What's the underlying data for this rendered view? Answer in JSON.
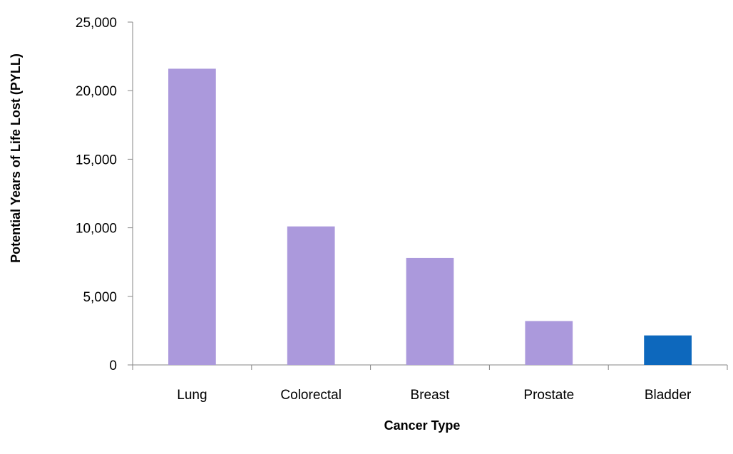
{
  "chart_data": {
    "type": "bar",
    "title": "",
    "xlabel": "Cancer Type",
    "ylabel": "Potential Years of Life Lost (PYLL)",
    "categories": [
      "Lung",
      "Colorectal",
      "Breast",
      "Prostate",
      "Bladder"
    ],
    "values": [
      21600,
      10100,
      7800,
      3200,
      2150
    ],
    "bar_colors": [
      "#ab99dc",
      "#ab99dc",
      "#ab99dc",
      "#ab99dc",
      "#0d68bd"
    ],
    "ylim": [
      0,
      25000
    ],
    "yticks": [
      0,
      5000,
      10000,
      15000,
      20000,
      25000
    ],
    "ytick_labels": [
      "0",
      "5,000",
      "10,000",
      "15,000",
      "20,000",
      "25,000"
    ],
    "grid": false,
    "legend": "none"
  }
}
